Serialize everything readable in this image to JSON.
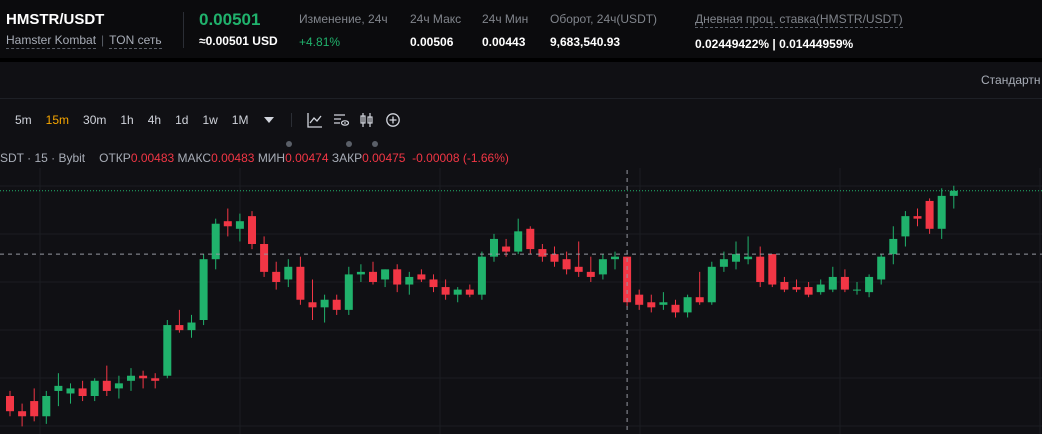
{
  "header": {
    "pair": "HMSTR/USDT",
    "name": "Hamster Kombat",
    "network": "TON сеть",
    "last_price": "0.00501",
    "last_approx": "≈0.00501 USD",
    "change_label": "Изменение, 24ч",
    "change_value": "+4.81%",
    "high_label": "24ч Макс",
    "high_value": "0.00506",
    "low_label": "24ч Мин",
    "low_value": "0.00443",
    "turnover_label": "Оборот, 24ч(USDT)",
    "turnover_value": "9,683,540.93",
    "rate_label": "Дневная проц. ставка(HMSTR/USDT)",
    "rate_value": "0.02449422% | 0.01444959%"
  },
  "chart_panel": {
    "view_label": "Стандартн",
    "timeframes": [
      "5m",
      "15m",
      "30m",
      "1h",
      "4h",
      "1d",
      "1w",
      "1M"
    ],
    "active_timeframe": "15m"
  },
  "legend": {
    "symbol": "SDT · 15 · Bybit",
    "open_label": "ОТКР",
    "open_value": "0.00483",
    "high_label": "МАКС",
    "high_value": "0.00483",
    "low_label": "МИН",
    "low_value": "0.00474",
    "close_label": "ЗАКР",
    "close_value": "0.00475",
    "change_value": "-0.00008 (-1.66%)"
  },
  "colors": {
    "up": "#20b26c",
    "down": "#f23645",
    "accent": "#f7a600"
  },
  "chart_data": {
    "type": "candlestick",
    "candles": [
      {
        "o": 0.0044,
        "h": 0.00442,
        "l": 0.00432,
        "c": 0.00434
      },
      {
        "o": 0.00434,
        "h": 0.00437,
        "l": 0.00428,
        "c": 0.00432
      },
      {
        "o": 0.00438,
        "h": 0.00443,
        "l": 0.0043,
        "c": 0.00432
      },
      {
        "o": 0.00432,
        "h": 0.00442,
        "l": 0.00429,
        "c": 0.0044
      },
      {
        "o": 0.00442,
        "h": 0.00449,
        "l": 0.00436,
        "c": 0.00444
      },
      {
        "o": 0.00441,
        "h": 0.00445,
        "l": 0.00437,
        "c": 0.00443
      },
      {
        "o": 0.00443,
        "h": 0.00446,
        "l": 0.00438,
        "c": 0.0044
      },
      {
        "o": 0.0044,
        "h": 0.00447,
        "l": 0.00438,
        "c": 0.00446
      },
      {
        "o": 0.00446,
        "h": 0.00452,
        "l": 0.0044,
        "c": 0.00442
      },
      {
        "o": 0.00443,
        "h": 0.00448,
        "l": 0.00439,
        "c": 0.00445
      },
      {
        "o": 0.00446,
        "h": 0.00451,
        "l": 0.00442,
        "c": 0.00448
      },
      {
        "o": 0.00448,
        "h": 0.0045,
        "l": 0.00443,
        "c": 0.00447
      },
      {
        "o": 0.00447,
        "h": 0.00449,
        "l": 0.00443,
        "c": 0.00446
      },
      {
        "o": 0.00448,
        "h": 0.0047,
        "l": 0.00447,
        "c": 0.00468
      },
      {
        "o": 0.00468,
        "h": 0.00474,
        "l": 0.00465,
        "c": 0.00466
      },
      {
        "o": 0.00466,
        "h": 0.00472,
        "l": 0.00463,
        "c": 0.00469
      },
      {
        "o": 0.0047,
        "h": 0.00496,
        "l": 0.00468,
        "c": 0.00494
      },
      {
        "o": 0.00494,
        "h": 0.0051,
        "l": 0.0049,
        "c": 0.00508
      },
      {
        "o": 0.00509,
        "h": 0.00514,
        "l": 0.00503,
        "c": 0.00507
      },
      {
        "o": 0.00506,
        "h": 0.00512,
        "l": 0.00501,
        "c": 0.00509
      },
      {
        "o": 0.00511,
        "h": 0.00513,
        "l": 0.00498,
        "c": 0.005
      },
      {
        "o": 0.005,
        "h": 0.00503,
        "l": 0.00487,
        "c": 0.00489
      },
      {
        "o": 0.00489,
        "h": 0.00493,
        "l": 0.00482,
        "c": 0.00485
      },
      {
        "o": 0.00486,
        "h": 0.00494,
        "l": 0.00483,
        "c": 0.00491
      },
      {
        "o": 0.00491,
        "h": 0.00495,
        "l": 0.00476,
        "c": 0.00478
      },
      {
        "o": 0.00477,
        "h": 0.00486,
        "l": 0.0047,
        "c": 0.00475
      },
      {
        "o": 0.00475,
        "h": 0.0048,
        "l": 0.00469,
        "c": 0.00478
      },
      {
        "o": 0.00478,
        "h": 0.0048,
        "l": 0.00472,
        "c": 0.00474
      },
      {
        "o": 0.00474,
        "h": 0.00491,
        "l": 0.00472,
        "c": 0.00488
      },
      {
        "o": 0.00488,
        "h": 0.00492,
        "l": 0.00485,
        "c": 0.00489
      },
      {
        "o": 0.00489,
        "h": 0.00493,
        "l": 0.00484,
        "c": 0.00485
      },
      {
        "o": 0.00486,
        "h": 0.0049,
        "l": 0.00483,
        "c": 0.0049
      },
      {
        "o": 0.0049,
        "h": 0.00492,
        "l": 0.00481,
        "c": 0.00484
      },
      {
        "o": 0.00484,
        "h": 0.00489,
        "l": 0.0048,
        "c": 0.00487
      },
      {
        "o": 0.00488,
        "h": 0.0049,
        "l": 0.00485,
        "c": 0.00486
      },
      {
        "o": 0.00486,
        "h": 0.00488,
        "l": 0.00481,
        "c": 0.00483
      },
      {
        "o": 0.00483,
        "h": 0.00486,
        "l": 0.00478,
        "c": 0.0048
      },
      {
        "o": 0.0048,
        "h": 0.00483,
        "l": 0.00477,
        "c": 0.00482
      },
      {
        "o": 0.00482,
        "h": 0.00484,
        "l": 0.00479,
        "c": 0.0048
      },
      {
        "o": 0.0048,
        "h": 0.00497,
        "l": 0.00478,
        "c": 0.00495
      },
      {
        "o": 0.00495,
        "h": 0.00504,
        "l": 0.00493,
        "c": 0.00502
      },
      {
        "o": 0.00499,
        "h": 0.00502,
        "l": 0.00495,
        "c": 0.00497
      },
      {
        "o": 0.00497,
        "h": 0.0051,
        "l": 0.00496,
        "c": 0.00505
      },
      {
        "o": 0.00506,
        "h": 0.00507,
        "l": 0.00496,
        "c": 0.00498
      },
      {
        "o": 0.00498,
        "h": 0.005,
        "l": 0.00493,
        "c": 0.00495
      },
      {
        "o": 0.00496,
        "h": 0.00499,
        "l": 0.00491,
        "c": 0.00493
      },
      {
        "o": 0.00494,
        "h": 0.00497,
        "l": 0.00488,
        "c": 0.0049
      },
      {
        "o": 0.00491,
        "h": 0.00501,
        "l": 0.00487,
        "c": 0.00489
      },
      {
        "o": 0.00489,
        "h": 0.00495,
        "l": 0.00485,
        "c": 0.00487
      },
      {
        "o": 0.00488,
        "h": 0.00496,
        "l": 0.00486,
        "c": 0.00494
      },
      {
        "o": 0.00494,
        "h": 0.00497,
        "l": 0.0049,
        "c": 0.00495
      },
      {
        "o": 0.00495,
        "h": 0.00495,
        "l": 0.00475,
        "c": 0.00477
      },
      {
        "o": 0.0048,
        "h": 0.00482,
        "l": 0.00474,
        "c": 0.00476
      },
      {
        "o": 0.00477,
        "h": 0.0048,
        "l": 0.00473,
        "c": 0.00475
      },
      {
        "o": 0.00476,
        "h": 0.00481,
        "l": 0.00474,
        "c": 0.00477
      },
      {
        "o": 0.00476,
        "h": 0.00478,
        "l": 0.00471,
        "c": 0.00473
      },
      {
        "o": 0.00473,
        "h": 0.0048,
        "l": 0.00471,
        "c": 0.00479
      },
      {
        "o": 0.00479,
        "h": 0.00489,
        "l": 0.00476,
        "c": 0.00477
      },
      {
        "o": 0.00477,
        "h": 0.00493,
        "l": 0.00476,
        "c": 0.00491
      },
      {
        "o": 0.00491,
        "h": 0.00497,
        "l": 0.00489,
        "c": 0.00494
      },
      {
        "o": 0.00493,
        "h": 0.00501,
        "l": 0.0049,
        "c": 0.00496
      },
      {
        "o": 0.00494,
        "h": 0.00503,
        "l": 0.00492,
        "c": 0.00495
      },
      {
        "o": 0.00495,
        "h": 0.00499,
        "l": 0.00483,
        "c": 0.00485
      },
      {
        "o": 0.00496,
        "h": 0.00496,
        "l": 0.00483,
        "c": 0.00484
      },
      {
        "o": 0.00485,
        "h": 0.00487,
        "l": 0.00481,
        "c": 0.00482
      },
      {
        "o": 0.00483,
        "h": 0.00486,
        "l": 0.00481,
        "c": 0.00482
      },
      {
        "o": 0.00483,
        "h": 0.00485,
        "l": 0.00479,
        "c": 0.0048
      },
      {
        "o": 0.00481,
        "h": 0.00486,
        "l": 0.0048,
        "c": 0.00484
      },
      {
        "o": 0.00482,
        "h": 0.00491,
        "l": 0.00481,
        "c": 0.00487
      },
      {
        "o": 0.00487,
        "h": 0.0049,
        "l": 0.00481,
        "c": 0.00482
      },
      {
        "o": 0.00482,
        "h": 0.00485,
        "l": 0.0048,
        "c": 0.00482
      },
      {
        "o": 0.00481,
        "h": 0.00488,
        "l": 0.00479,
        "c": 0.00487
      },
      {
        "o": 0.00486,
        "h": 0.00496,
        "l": 0.00484,
        "c": 0.00495
      },
      {
        "o": 0.00496,
        "h": 0.00507,
        "l": 0.00492,
        "c": 0.00502
      },
      {
        "o": 0.00503,
        "h": 0.00513,
        "l": 0.00499,
        "c": 0.00511
      },
      {
        "o": 0.00511,
        "h": 0.00514,
        "l": 0.00507,
        "c": 0.0051
      },
      {
        "o": 0.00517,
        "h": 0.00518,
        "l": 0.00504,
        "c": 0.00506
      },
      {
        "o": 0.00506,
        "h": 0.00522,
        "l": 0.00502,
        "c": 0.00519
      },
      {
        "o": 0.00519,
        "h": 0.00523,
        "l": 0.00514,
        "c": 0.00521
      }
    ],
    "price_line": 0.00521,
    "crosshair_price": 0.00496,
    "crosshair_index": 51,
    "ylim": [
      0.00425,
      0.0053
    ]
  }
}
